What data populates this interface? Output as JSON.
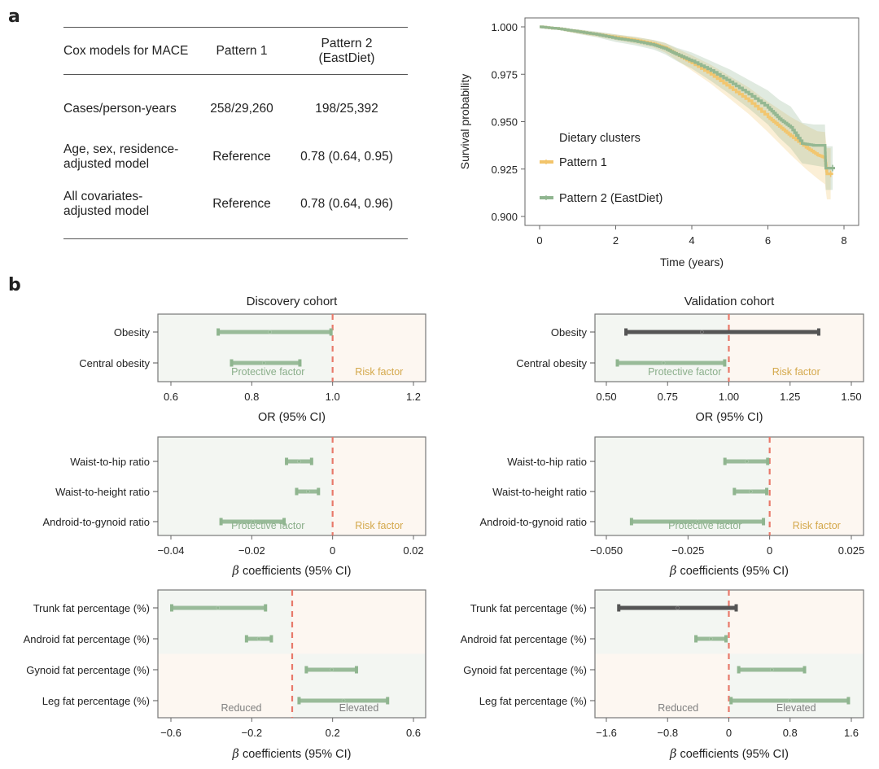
{
  "panel_labels": {
    "a": "a",
    "b": "b"
  },
  "table": {
    "headers": [
      "Cox models for MACE",
      "Pattern 1",
      "Pattern 2 (EastDiet)"
    ],
    "header_lines": [
      [
        "Cox models for MACE"
      ],
      [
        "Pattern 1"
      ],
      [
        "Pattern 2",
        "(EastDiet)"
      ]
    ],
    "rows": [
      {
        "label_lines": [
          "Cases/person-years"
        ],
        "pattern1": "258/29,260",
        "pattern2": "198/25,392"
      },
      {
        "label_lines": [
          "Age, sex, residence-",
          "adjusted model"
        ],
        "pattern1": "Reference",
        "pattern2": "0.78  (0.64, 0.95)"
      },
      {
        "label_lines": [
          "All covariates-",
          "adjusted model"
        ],
        "pattern1": "Reference",
        "pattern2": "0.78  (0.64, 0.96)"
      }
    ]
  },
  "chart_data": [
    {
      "id": "km",
      "type": "line",
      "title": "",
      "xlabel": "Time (years)",
      "ylabel": "Survival probability",
      "xlim": [
        0,
        8
      ],
      "ylim": [
        0.9,
        1.0
      ],
      "xticks": [
        0,
        2,
        4,
        6,
        8
      ],
      "xtick_labels": [
        "0",
        "2",
        "4",
        "6",
        "8"
      ],
      "yticks": [
        0.9,
        0.925,
        0.95,
        0.975,
        1.0
      ],
      "ytick_labels": [
        "0.900",
        "0.925",
        "0.950",
        "0.975",
        "1.000"
      ],
      "legend_title": "Dietary clusters",
      "legend_position": "center-left",
      "series": [
        {
          "name": "Pattern 1",
          "color": "#F2C46A",
          "x": [
            0,
            0.5,
            1.0,
            1.5,
            2.0,
            2.5,
            3.0,
            3.3,
            3.6,
            4.0,
            4.5,
            5.0,
            5.5,
            6.0,
            6.3,
            6.6,
            7.0,
            7.3,
            7.5,
            7.55,
            7.65
          ],
          "y": [
            1.0,
            0.999,
            0.9975,
            0.996,
            0.9945,
            0.993,
            0.991,
            0.989,
            0.9855,
            0.981,
            0.975,
            0.968,
            0.961,
            0.9525,
            0.9475,
            0.9425,
            0.9365,
            0.9325,
            0.931,
            0.9225,
            0.9225
          ],
          "ci_lower": [
            1.0,
            0.9985,
            0.9965,
            0.9948,
            0.993,
            0.9912,
            0.989,
            0.9865,
            0.9825,
            0.977,
            0.97,
            0.962,
            0.954,
            0.9445,
            0.9385,
            0.9325,
            0.925,
            0.92,
            0.917,
            0.909,
            0.909
          ],
          "ci_upper": [
            1.0,
            0.9995,
            0.9985,
            0.9972,
            0.996,
            0.9948,
            0.993,
            0.9915,
            0.9885,
            0.985,
            0.98,
            0.974,
            0.968,
            0.9605,
            0.9565,
            0.9525,
            0.948,
            0.945,
            0.9445,
            0.936,
            0.936
          ]
        },
        {
          "name": "Pattern 2 (EastDiet)",
          "color": "#8FB58F",
          "x": [
            0,
            0.5,
            1.0,
            1.5,
            2.0,
            2.5,
            3.0,
            3.3,
            3.6,
            4.0,
            4.5,
            5.0,
            5.5,
            6.0,
            6.3,
            6.6,
            6.9,
            7.2,
            7.5,
            7.52,
            7.7
          ],
          "y": [
            1.0,
            0.999,
            0.9975,
            0.996,
            0.994,
            0.9925,
            0.9905,
            0.9885,
            0.9855,
            0.982,
            0.977,
            0.971,
            0.9645,
            0.9575,
            0.9515,
            0.947,
            0.9385,
            0.9375,
            0.9375,
            0.9255,
            0.9255
          ],
          "ci_lower": [
            1.0,
            0.9985,
            0.9963,
            0.9945,
            0.992,
            0.9903,
            0.988,
            0.9855,
            0.982,
            0.978,
            0.9715,
            0.9645,
            0.957,
            0.9485,
            0.9415,
            0.936,
            0.928,
            0.927,
            0.926,
            0.914,
            0.914
          ],
          "ci_upper": [
            1.0,
            0.9995,
            0.9987,
            0.9975,
            0.996,
            0.9947,
            0.993,
            0.9915,
            0.989,
            0.9865,
            0.982,
            0.9775,
            0.972,
            0.9665,
            0.9615,
            0.958,
            0.9495,
            0.9485,
            0.9485,
            0.937,
            0.937
          ]
        }
      ]
    },
    {
      "id": "disc_or",
      "type": "forest",
      "title": "Discovery cohort",
      "xlabel": "OR (95% CI)",
      "xlim": [
        0.571,
        1.232
      ],
      "xticks": [
        0.6,
        0.8,
        1.0,
        1.2
      ],
      "xtick_labels": [
        "0.6",
        "0.8",
        "1.0",
        "1.2"
      ],
      "reference": 1.0,
      "region_labels": {
        "left": "Protective factor",
        "right": "Risk factor"
      },
      "rows": [
        {
          "label": "Obesity",
          "estimate": 0.845,
          "lower": 0.717,
          "upper": 0.996,
          "significant": true
        },
        {
          "label": "Central obesity",
          "estimate": 0.83,
          "lower": 0.75,
          "upper": 0.919,
          "significant": true
        }
      ]
    },
    {
      "id": "val_or",
      "type": "forest",
      "title": "Validation cohort",
      "xlabel": "OR (95% CI)",
      "xlim": [
        0.46,
        1.54
      ],
      "xticks": [
        0.5,
        0.75,
        1.0,
        1.25,
        1.5
      ],
      "xtick_labels": [
        "0.50",
        "0.75",
        "1.00",
        "1.25",
        "1.50"
      ],
      "reference": 1.0,
      "region_labels": {
        "left": "Protective factor",
        "right": "Risk factor"
      },
      "rows": [
        {
          "label": "Obesity",
          "estimate": 0.89,
          "lower": 0.58,
          "upper": 1.367,
          "significant": false
        },
        {
          "label": "Central obesity",
          "estimate": 0.733,
          "lower": 0.545,
          "upper": 0.983,
          "significant": true
        }
      ]
    },
    {
      "id": "disc_ratio",
      "type": "forest",
      "title": "",
      "xlabel": "β coefficients (95% CI)",
      "xlim": [
        -0.0432,
        0.0229
      ],
      "xticks": [
        -0.04,
        -0.02,
        0,
        0.02
      ],
      "xtick_labels": [
        "−0.04",
        "−0.02",
        "0",
        "0.02"
      ],
      "reference": 0,
      "region_labels": {
        "left": "Protective factor",
        "right": "Risk factor"
      },
      "rows": [
        {
          "label": "Waist-to-hip ratio",
          "estimate": -0.0083,
          "lower": -0.0114,
          "upper": -0.0052,
          "significant": true
        },
        {
          "label": "Waist-to-height ratio",
          "estimate": -0.0061,
          "lower": -0.0089,
          "upper": -0.0035,
          "significant": true
        },
        {
          "label": "Android-to-gynoid ratio",
          "estimate": -0.0197,
          "lower": -0.0276,
          "upper": -0.012,
          "significant": true
        }
      ]
    },
    {
      "id": "val_ratio",
      "type": "forest",
      "title": "",
      "xlabel": "β coefficients (95% CI)",
      "xlim": [
        -0.0535,
        0.0286
      ],
      "xticks": [
        -0.05,
        -0.025,
        0,
        0.025
      ],
      "xtick_labels": [
        "−0.050",
        "−0.025",
        "0",
        "0.025"
      ],
      "reference": 0,
      "region_labels": {
        "left": "Protective factor",
        "right": "Risk factor"
      },
      "rows": [
        {
          "label": "Waist-to-hip ratio",
          "estimate": -0.007,
          "lower": -0.0137,
          "upper": -0.0006,
          "significant": true
        },
        {
          "label": "Waist-to-height ratio",
          "estimate": -0.0058,
          "lower": -0.0108,
          "upper": -0.0009,
          "significant": true
        },
        {
          "label": "Android-to-gynoid ratio",
          "estimate": -0.0221,
          "lower": -0.0423,
          "upper": -0.0019,
          "significant": true
        }
      ]
    },
    {
      "id": "disc_fat",
      "type": "forest",
      "title": "",
      "xlabel": "β coefficients (95% CI)",
      "xlim": [
        -0.673,
        0.661
      ],
      "xticks": [
        -0.6,
        -0.2,
        0.2,
        0.6
      ],
      "xtick_labels": [
        "−0.6",
        "−0.2",
        "0.2",
        "0.6"
      ],
      "reference": 0,
      "region_labels": {
        "left": "Reduced",
        "right": "Elevated"
      },
      "rows": [
        {
          "label": "Trunk fat percentage (%)",
          "estimate": -0.367,
          "lower": -0.596,
          "upper": -0.132,
          "significant": true
        },
        {
          "label": "Android fat percentage (%)",
          "estimate": -0.165,
          "lower": -0.226,
          "upper": -0.103,
          "significant": true
        },
        {
          "label": "Gynoid fat percentage (%)",
          "estimate": 0.196,
          "lower": 0.07,
          "upper": 0.318,
          "significant": true
        },
        {
          "label": "Leg fat percentage (%)",
          "estimate": 0.254,
          "lower": 0.034,
          "upper": 0.472,
          "significant": true
        }
      ]
    },
    {
      "id": "val_fat",
      "type": "forest",
      "title": "",
      "xlabel": "β coefficients (95% CI)",
      "xlim": [
        -1.77,
        1.72
      ],
      "xticks": [
        -1.6,
        -0.8,
        0,
        0.8,
        1.6
      ],
      "xtick_labels": [
        "−1.6",
        "−0.8",
        "0",
        "0.8",
        "1.6"
      ],
      "reference": 0,
      "region_labels": {
        "left": "Reduced",
        "right": "Elevated"
      },
      "rows": [
        {
          "label": "Trunk fat percentage (%)",
          "estimate": -0.67,
          "lower": -1.438,
          "upper": 0.096,
          "significant": false
        },
        {
          "label": "Android fat percentage (%)",
          "estimate": -0.235,
          "lower": -0.43,
          "upper": -0.037,
          "significant": true
        },
        {
          "label": "Gynoid fat percentage (%)",
          "estimate": 0.562,
          "lower": 0.129,
          "upper": 0.989,
          "significant": true
        },
        {
          "label": "Leg fat percentage (%)",
          "estimate": 0.794,
          "lower": 0.029,
          "upper": 1.562,
          "significant": true
        }
      ]
    }
  ],
  "colors": {
    "pattern1": "#F2C46A",
    "pattern2": "#8FB58F",
    "significant_bar": "#8FB58F",
    "nonsignificant_bar": "#555555",
    "reference_line": "#E8796A",
    "protective_bg": "#F3F6F2",
    "risk_bg": "#FDF7F1",
    "protective_text": "#8AAE8A",
    "risk_text": "#D4A84B",
    "neutral_text": "#808080"
  }
}
